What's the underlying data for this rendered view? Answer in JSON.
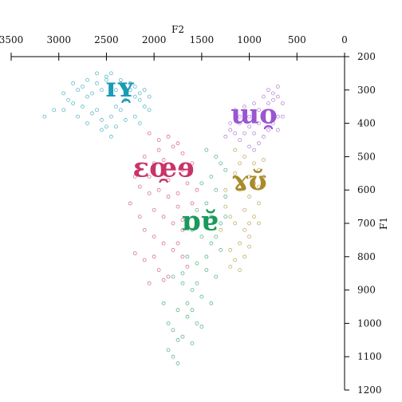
{
  "chart_data": {
    "type": "scatter",
    "title": "",
    "xlabel": "F2",
    "ylabel": "F1",
    "x_reversed": true,
    "y_reversed": true,
    "xlim": [
      3500,
      0
    ],
    "ylim": [
      200,
      1200
    ],
    "x_ticks": [
      "3500",
      "3000",
      "2500",
      "2000",
      "1500",
      "1000",
      "500",
      "0"
    ],
    "y_ticks": [
      "200",
      "300",
      "400",
      "500",
      "600",
      "700",
      "800",
      "900",
      "1000",
      "1100",
      "1200"
    ],
    "x_axis_position": "top",
    "y_axis_position": "right",
    "grid": false,
    "legend": "none",
    "series": [
      {
        "label": "ɪʏ̯",
        "color": "#1a9bb5",
        "label_at": [
          2350,
          320
        ],
        "points": [
          [
            2850,
            280
          ],
          [
            2800,
            300
          ],
          [
            2750,
            290
          ],
          [
            2700,
            320
          ],
          [
            2650,
            310
          ],
          [
            2600,
            280
          ],
          [
            2550,
            300
          ],
          [
            2500,
            270
          ],
          [
            2450,
            290
          ],
          [
            2400,
            300
          ],
          [
            2350,
            280
          ],
          [
            2300,
            310
          ],
          [
            2250,
            300
          ],
          [
            2200,
            320
          ],
          [
            2150,
            330
          ],
          [
            2100,
            350
          ],
          [
            2050,
            360
          ],
          [
            2900,
            330
          ],
          [
            2850,
            340
          ],
          [
            2750,
            350
          ],
          [
            2650,
            370
          ],
          [
            2600,
            360
          ],
          [
            2550,
            390
          ],
          [
            2500,
            410
          ],
          [
            2450,
            380
          ],
          [
            2400,
            350
          ],
          [
            2350,
            360
          ],
          [
            2300,
            390
          ],
          [
            2200,
            380
          ],
          [
            2150,
            400
          ],
          [
            2700,
            270
          ],
          [
            2600,
            250
          ],
          [
            2500,
            260
          ],
          [
            2450,
            250
          ],
          [
            2350,
            270
          ],
          [
            2250,
            280
          ],
          [
            2200,
            290
          ],
          [
            2950,
            360
          ],
          [
            2800,
            380
          ],
          [
            2700,
            400
          ],
          [
            2550,
            420
          ],
          [
            2450,
            440
          ],
          [
            2400,
            410
          ],
          [
            2300,
            330
          ],
          [
            2150,
            310
          ],
          [
            2100,
            300
          ],
          [
            2050,
            320
          ],
          [
            3150,
            380
          ],
          [
            3050,
            360
          ],
          [
            2950,
            310
          ]
        ]
      },
      {
        "label": "ɛœ̯ɘ",
        "color": "#c8336a",
        "label_at": [
          1900,
          560
        ],
        "points": [
          [
            2050,
            430
          ],
          [
            1950,
            450
          ],
          [
            1850,
            440
          ],
          [
            1800,
            470
          ],
          [
            1750,
            460
          ],
          [
            1700,
            490
          ],
          [
            2100,
            500
          ],
          [
            2000,
            520
          ],
          [
            1900,
            510
          ],
          [
            1800,
            530
          ],
          [
            1700,
            540
          ],
          [
            2200,
            560
          ],
          [
            2150,
            590
          ],
          [
            2050,
            610
          ],
          [
            1950,
            600
          ],
          [
            1850,
            620
          ],
          [
            1750,
            610
          ],
          [
            1650,
            580
          ],
          [
            2000,
            660
          ],
          [
            1900,
            680
          ],
          [
            1800,
            700
          ],
          [
            1700,
            690
          ],
          [
            2100,
            720
          ],
          [
            2000,
            740
          ],
          [
            1900,
            760
          ],
          [
            1800,
            780
          ],
          [
            2200,
            790
          ],
          [
            2100,
            810
          ],
          [
            2000,
            800
          ],
          [
            1950,
            840
          ],
          [
            1900,
            870
          ],
          [
            1850,
            860
          ],
          [
            2050,
            880
          ],
          [
            1600,
            520
          ],
          [
            1600,
            640
          ],
          [
            1550,
            600
          ],
          [
            2250,
            640
          ],
          [
            2150,
            680
          ],
          [
            1750,
            760
          ],
          [
            1700,
            800
          ],
          [
            1650,
            830
          ],
          [
            1950,
            480
          ],
          [
            1850,
            570
          ],
          [
            2050,
            560
          ],
          [
            1750,
            650
          ],
          [
            1700,
            720
          ]
        ]
      },
      {
        "label": "ɯo̯",
        "color": "#9a55d0",
        "label_at": [
          950,
          400
        ],
        "points": [
          [
            1200,
            420
          ],
          [
            1100,
            400
          ],
          [
            1000,
            380
          ],
          [
            900,
            360
          ],
          [
            800,
            340
          ],
          [
            750,
            330
          ],
          [
            700,
            320
          ],
          [
            650,
            340
          ],
          [
            700,
            380
          ],
          [
            750,
            400
          ],
          [
            800,
            420
          ],
          [
            850,
            440
          ],
          [
            900,
            460
          ],
          [
            950,
            480
          ],
          [
            1000,
            470
          ],
          [
            1100,
            450
          ],
          [
            1150,
            430
          ],
          [
            1250,
            440
          ],
          [
            1200,
            400
          ],
          [
            1050,
            350
          ],
          [
            950,
            340
          ],
          [
            850,
            320
          ],
          [
            800,
            300
          ],
          [
            750,
            310
          ],
          [
            700,
            290
          ],
          [
            650,
            380
          ],
          [
            700,
            420
          ],
          [
            900,
            400
          ],
          [
            1000,
            410
          ],
          [
            1100,
            380
          ],
          [
            1150,
            360
          ],
          [
            1050,
            430
          ],
          [
            950,
            430
          ],
          [
            850,
            380
          ]
        ]
      },
      {
        "label": "ɤʊ̆",
        "color": "#a88b2a",
        "label_at": [
          1000,
          600
        ],
        "points": [
          [
            1150,
            480
          ],
          [
            1050,
            500
          ],
          [
            950,
            520
          ],
          [
            900,
            540
          ],
          [
            850,
            510
          ],
          [
            1000,
            560
          ],
          [
            900,
            590
          ],
          [
            1100,
            600
          ],
          [
            1000,
            620
          ],
          [
            900,
            640
          ],
          [
            1050,
            660
          ],
          [
            950,
            680
          ],
          [
            1150,
            700
          ],
          [
            1050,
            720
          ],
          [
            1000,
            740
          ],
          [
            1100,
            760
          ],
          [
            1200,
            780
          ],
          [
            1150,
            810
          ],
          [
            1100,
            840
          ],
          [
            1050,
            800
          ],
          [
            1000,
            770
          ],
          [
            1250,
            650
          ],
          [
            1200,
            680
          ],
          [
            950,
            580
          ],
          [
            850,
            560
          ],
          [
            900,
            700
          ],
          [
            1000,
            700
          ],
          [
            1150,
            550
          ],
          [
            1100,
            520
          ],
          [
            1250,
            600
          ],
          [
            1300,
            720
          ],
          [
            1200,
            830
          ]
        ]
      },
      {
        "label": "ɒɐ̆",
        "color": "#1a9a5a",
        "label_at": [
          1520,
          720
        ],
        "points": [
          [
            1450,
            480
          ],
          [
            1350,
            500
          ],
          [
            1300,
            520
          ],
          [
            1250,
            540
          ],
          [
            1400,
            560
          ],
          [
            1500,
            580
          ],
          [
            1350,
            600
          ],
          [
            1250,
            620
          ],
          [
            1450,
            640
          ],
          [
            1550,
            660
          ],
          [
            1400,
            680
          ],
          [
            1300,
            700
          ],
          [
            1600,
            720
          ],
          [
            1500,
            740
          ],
          [
            1400,
            760
          ],
          [
            1300,
            780
          ],
          [
            1650,
            800
          ],
          [
            1550,
            820
          ],
          [
            1450,
            840
          ],
          [
            1350,
            860
          ],
          [
            1700,
            880
          ],
          [
            1600,
            900
          ],
          [
            1500,
            920
          ],
          [
            1400,
            940
          ],
          [
            1750,
            960
          ],
          [
            1650,
            980
          ],
          [
            1550,
            1000
          ],
          [
            1800,
            1020
          ],
          [
            1700,
            1040
          ],
          [
            1600,
            1060
          ],
          [
            1800,
            1100
          ],
          [
            1750,
            1120
          ],
          [
            1850,
            1080
          ],
          [
            1650,
            940
          ],
          [
            1550,
            880
          ],
          [
            1450,
            800
          ],
          [
            1350,
            740
          ],
          [
            1250,
            680
          ],
          [
            1700,
            850
          ],
          [
            1600,
            960
          ],
          [
            1500,
            1010
          ],
          [
            1750,
            1050
          ],
          [
            1850,
            1000
          ],
          [
            1900,
            940
          ],
          [
            1800,
            860
          ]
        ]
      }
    ]
  }
}
